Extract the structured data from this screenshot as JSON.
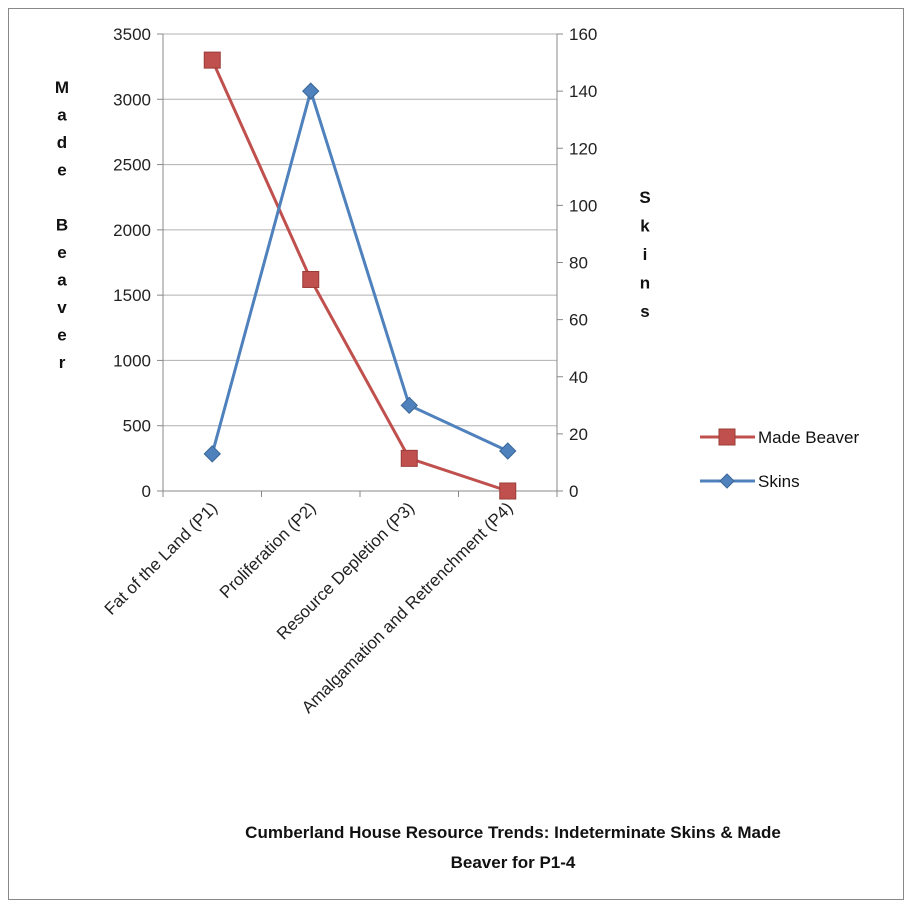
{
  "chart_data": {
    "type": "line",
    "title_lines": [
      "Cumberland House Resource Trends: Indeterminate Skins & Made",
      "Beaver for P1-4"
    ],
    "categories": [
      "Fat of the Land (P1)",
      "Proliferation (P2)",
      "Resource Depletion (P3)",
      "Amalgamation and Retrenchment (P4)"
    ],
    "y_left": {
      "label": "Made Beaver",
      "range": [
        0,
        3500
      ],
      "ticks": [
        "0",
        "500",
        "1000",
        "1500",
        "2000",
        "2500",
        "3000",
        "3500"
      ]
    },
    "y_right": {
      "label": "Skins",
      "range": [
        0,
        160
      ],
      "ticks": [
        "0",
        "20",
        "40",
        "60",
        "80",
        "100",
        "120",
        "140",
        "160"
      ]
    },
    "series": [
      {
        "name": "Made Beaver",
        "axis": "left",
        "color": "#c0504d",
        "marker": "square",
        "values": [
          3300,
          1620,
          250,
          0
        ]
      },
      {
        "name": "Skins",
        "axis": "right",
        "color": "#4f81bd",
        "marker": "diamond",
        "values": [
          13,
          140,
          30,
          14
        ]
      }
    ],
    "grid": true,
    "legend": "right"
  }
}
